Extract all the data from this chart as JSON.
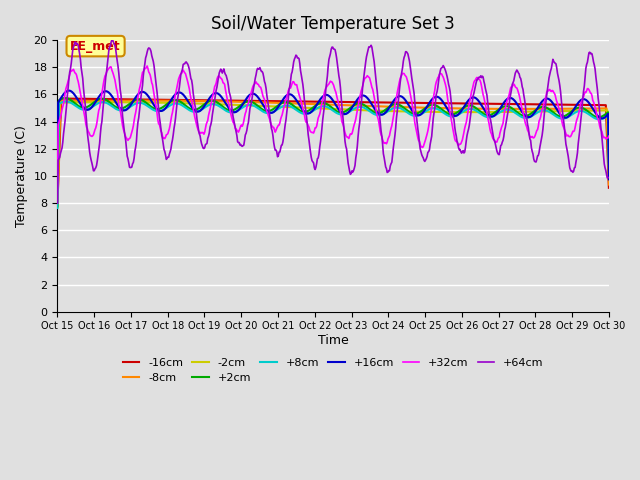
{
  "title": "Soil/Water Temperature Set 3",
  "xlabel": "Time",
  "ylabel": "Temperature (C)",
  "ylim": [
    0,
    20
  ],
  "yticks": [
    0,
    2,
    4,
    6,
    8,
    10,
    12,
    14,
    16,
    18,
    20
  ],
  "n_days": 15,
  "xtick_positions": [
    0,
    1,
    2,
    3,
    4,
    5,
    6,
    7,
    8,
    9,
    10,
    11,
    12,
    13,
    14,
    15
  ],
  "xtick_labels": [
    "Oct 15",
    "Oct 16",
    "Oct 17",
    "Oct 18",
    "Oct 19",
    "Oct 20",
    "Oct 21",
    "Oct 22",
    "Oct 23",
    "Oct 24",
    "Oct 25",
    "Oct 26",
    "Oct 27",
    "Oct 28",
    "Oct 29",
    "Oct 30"
  ],
  "bg_color": "#e0e0e0",
  "plot_bg_color": "#e0e0e0",
  "grid_color": "#ffffff",
  "series": {
    "-16cm": {
      "color": "#cc0000",
      "lw": 1.5
    },
    "-8cm": {
      "color": "#ff8800",
      "lw": 1.5
    },
    "-2cm": {
      "color": "#cccc00",
      "lw": 1.5
    },
    "+2cm": {
      "color": "#00aa00",
      "lw": 1.5
    },
    "+8cm": {
      "color": "#00cccc",
      "lw": 1.5
    },
    "+16cm": {
      "color": "#0000cc",
      "lw": 1.5
    },
    "+32cm": {
      "color": "#ff00ff",
      "lw": 1.2
    },
    "+64cm": {
      "color": "#9900cc",
      "lw": 1.2
    }
  },
  "annotation_text": "EE_met",
  "annotation_color": "#cc0000",
  "annotation_bg": "#ffff99",
  "annotation_border": "#cc8800"
}
